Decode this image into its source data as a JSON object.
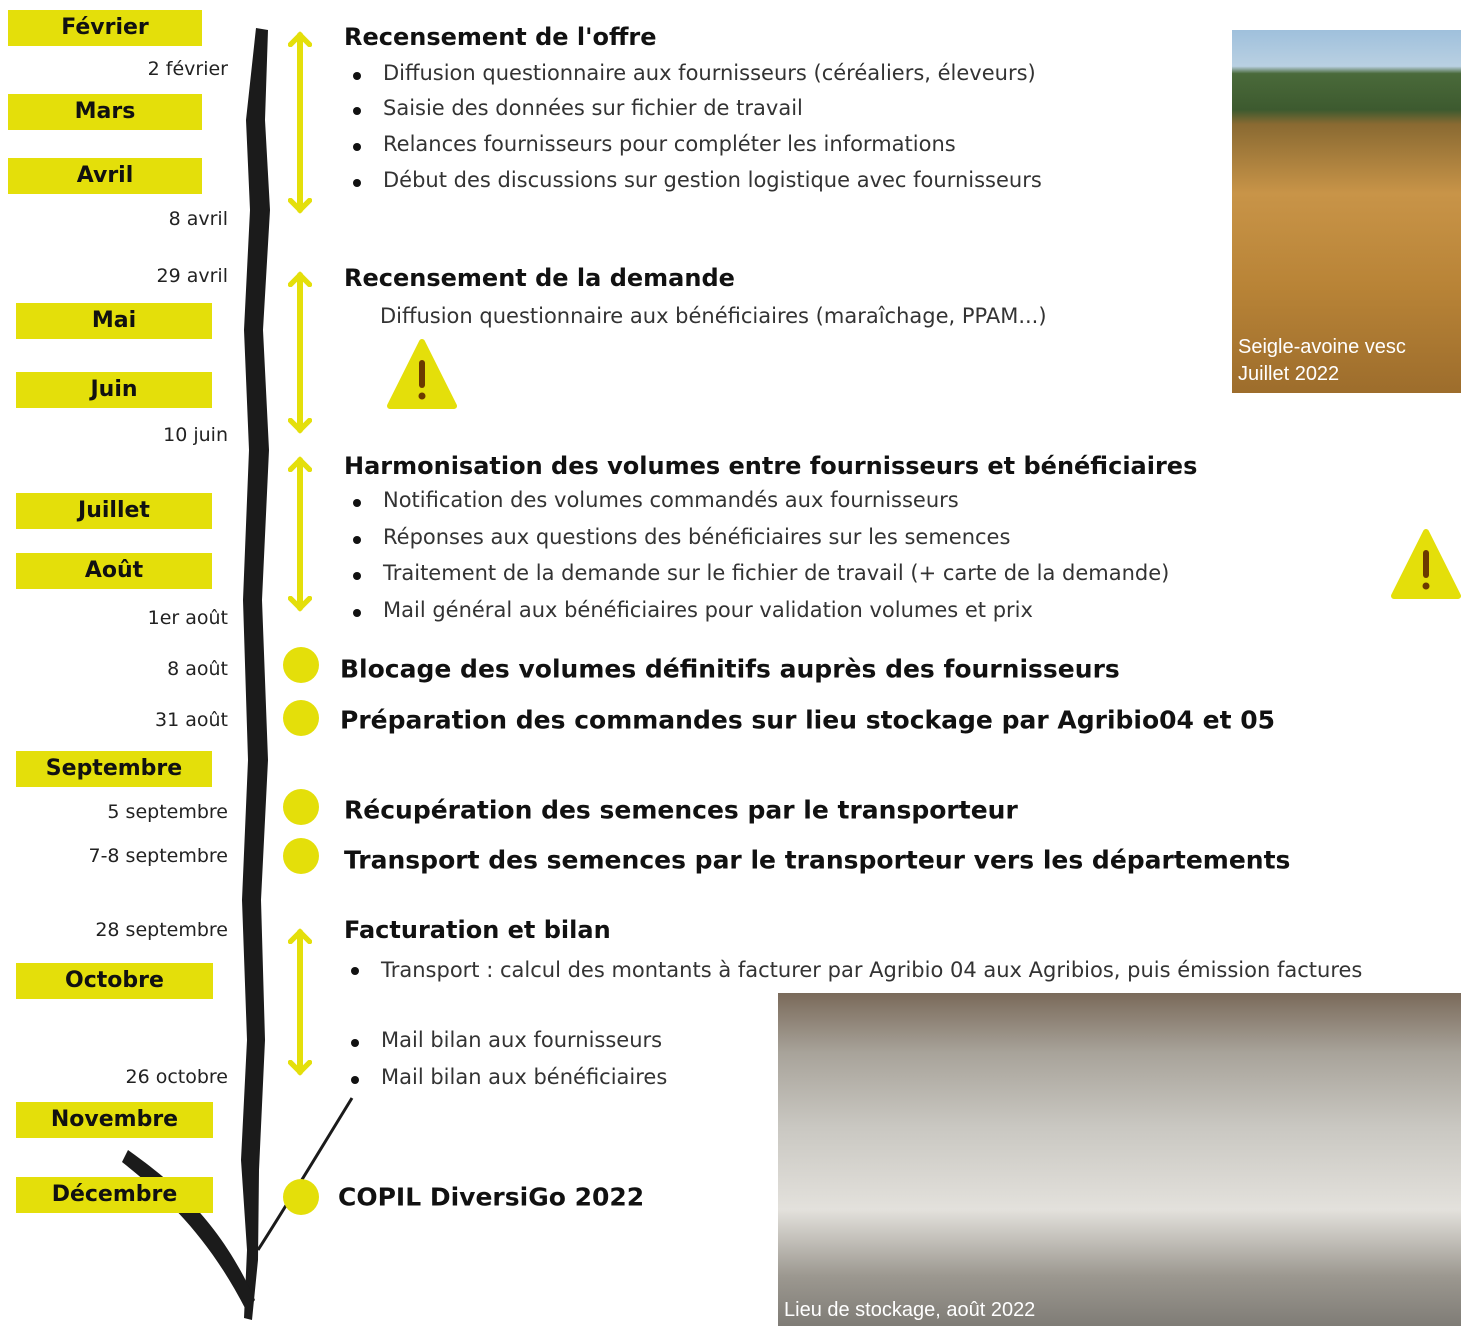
{
  "months": [
    "Février",
    "Mars",
    "Avril",
    "Mai",
    "Juin",
    "Juillet",
    "Août",
    "Septembre",
    "Octobre",
    "Novembre",
    "Décembre"
  ],
  "dates": [
    "2 février",
    "8 avril",
    "29 avril",
    "10 juin",
    "1er août",
    "8 août",
    "31 août",
    "5 septembre",
    "7-8 septembre",
    "28 septembre",
    "26 octobre"
  ],
  "sections": [
    {
      "title": "Recensement de l'offre",
      "items": [
        "Diffusion questionnaire aux fournisseurs (céréaliers, éleveurs)",
        "Saisie des données sur fichier de travail",
        "Relances fournisseurs pour compléter les informations",
        "Début des discussions sur gestion logistique avec fournisseurs"
      ]
    },
    {
      "title": "Recensement de la demande",
      "text": "Diffusion questionnaire aux bénéficiaires (maraîchage, PPAM...)"
    },
    {
      "title": "Harmonisation des volumes entre fournisseurs et bénéficiaires",
      "items": [
        "Notification des volumes commandés aux fournisseurs",
        "Réponses aux questions des bénéficiaires sur les semences",
        "Traitement de la demande sur le fichier de travail (+ carte de la demande)",
        "Mail général aux bénéficiaires pour validation volumes et prix"
      ]
    },
    {
      "title": "Facturation et bilan",
      "items": [
        "Transport : calcul des montants à facturer par Agribio 04 aux Agribios, puis émission factures",
        "Mail bilan aux fournisseurs",
        "Mail bilan aux bénéficiaires"
      ]
    }
  ],
  "events": [
    "Blocage des volumes définitifs auprès des fournisseurs",
    "Préparation des commandes sur lieu stockage par Agribio04 et 05",
    "Récupération des semences par le transporteur",
    "Transport des semences par le transporteur vers les départements",
    "COPIL DiversiGo 2022"
  ],
  "photos": [
    {
      "caption": [
        "Seigle-avoine vesc",
        "Juillet 2022"
      ]
    },
    {
      "caption": [
        "Lieu de stockage, août 2022"
      ]
    }
  ]
}
